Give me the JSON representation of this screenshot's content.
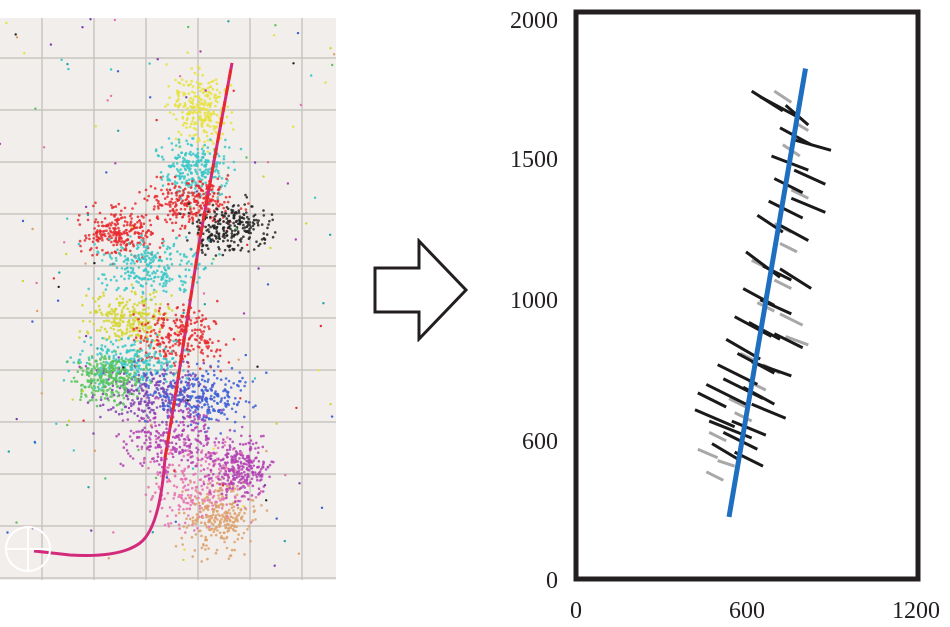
{
  "map_panel": {
    "background": "#f1eeeb",
    "grid_color": "#c9c5c1",
    "well_color": "#d42a7c",
    "marker_color": "#e8292e",
    "marker_alt_color": "#62b445",
    "cluster_colors": [
      "#e6e23c",
      "#36c7c7",
      "#e8292e",
      "#3b5fd6",
      "#7b3fb0",
      "#b23fb3",
      "#dda06b",
      "#20a5a5",
      "#222222",
      "#59c45a",
      "#d3d62f",
      "#e66fb0"
    ]
  },
  "arrow": {
    "stroke": "#231f20",
    "fill": "#ffffff"
  },
  "chart_data": {
    "type": "scatter",
    "title": "",
    "xlabel": "",
    "ylabel": "",
    "xlim": [
      0,
      1200
    ],
    "ylim": [
      0,
      2000
    ],
    "x_ticks": [
      "0",
      "600",
      "1200"
    ],
    "y_ticks": [
      "0",
      "600",
      "1000",
      "1500",
      "2000"
    ],
    "y_tick_values": [
      0,
      600,
      1000,
      1500,
      2000
    ],
    "x_tick_values": [
      0,
      600,
      1200
    ],
    "grid": false,
    "line_color": "#1f6fc0",
    "trend_line": [
      [
        540,
        220
      ],
      [
        810,
        1810
      ]
    ],
    "black_segments": [
      [
        [
          620,
          1730
        ],
        [
          730,
          1660
        ]
      ],
      [
        [
          650,
          1710
        ],
        [
          780,
          1640
        ]
      ],
      [
        [
          740,
          1680
        ],
        [
          820,
          1610
        ]
      ],
      [
        [
          760,
          1560
        ],
        [
          900,
          1520
        ]
      ],
      [
        [
          720,
          1600
        ],
        [
          830,
          1540
        ]
      ],
      [
        [
          690,
          1500
        ],
        [
          820,
          1450
        ]
      ],
      [
        [
          700,
          1420
        ],
        [
          800,
          1370
        ]
      ],
      [
        [
          770,
          1450
        ],
        [
          880,
          1400
        ]
      ],
      [
        [
          680,
          1340
        ],
        [
          800,
          1280
        ]
      ],
      [
        [
          760,
          1350
        ],
        [
          880,
          1300
        ]
      ],
      [
        [
          640,
          1290
        ],
        [
          730,
          1230
        ]
      ],
      [
        [
          710,
          1260
        ],
        [
          820,
          1200
        ]
      ],
      [
        [
          600,
          1160
        ],
        [
          720,
          1070
        ]
      ],
      [
        [
          660,
          1110
        ],
        [
          760,
          1060
        ]
      ],
      [
        [
          720,
          1100
        ],
        [
          830,
          1030
        ]
      ],
      [
        [
          590,
          1030
        ],
        [
          700,
          970
        ]
      ],
      [
        [
          650,
          990
        ],
        [
          760,
          940
        ]
      ],
      [
        [
          560,
          930
        ],
        [
          690,
          860
        ]
      ],
      [
        [
          610,
          910
        ],
        [
          720,
          850
        ]
      ],
      [
        [
          530,
          850
        ],
        [
          650,
          780
        ]
      ],
      [
        [
          570,
          800
        ],
        [
          700,
          730
        ]
      ],
      [
        [
          620,
          770
        ],
        [
          760,
          720
        ]
      ],
      [
        [
          500,
          760
        ],
        [
          640,
          690
        ]
      ],
      [
        [
          520,
          710
        ],
        [
          660,
          640
        ]
      ],
      [
        [
          460,
          690
        ],
        [
          600,
          620
        ]
      ],
      [
        [
          420,
          600
        ],
        [
          560,
          540
        ]
      ],
      [
        [
          470,
          560
        ],
        [
          620,
          500
        ]
      ],
      [
        [
          550,
          560
        ],
        [
          670,
          510
        ]
      ],
      [
        [
          430,
          660
        ],
        [
          530,
          610
        ]
      ],
      [
        [
          590,
          680
        ],
        [
          700,
          620
        ]
      ],
      [
        [
          620,
          620
        ],
        [
          740,
          570
        ]
      ],
      [
        [
          480,
          480
        ],
        [
          580,
          420
        ]
      ],
      [
        [
          560,
          450
        ],
        [
          660,
          400
        ]
      ],
      [
        [
          520,
          520
        ],
        [
          640,
          460
        ]
      ],
      [
        [
          700,
          870
        ],
        [
          800,
          820
        ]
      ]
    ],
    "gray_segments": [
      [
        [
          700,
          1730
        ],
        [
          760,
          1690
        ]
      ],
      [
        [
          770,
          1620
        ],
        [
          820,
          1590
        ]
      ],
      [
        [
          730,
          1540
        ],
        [
          790,
          1500
        ]
      ],
      [
        [
          760,
          1380
        ],
        [
          820,
          1350
        ]
      ],
      [
        [
          720,
          1190
        ],
        [
          780,
          1160
        ]
      ],
      [
        [
          620,
          1130
        ],
        [
          680,
          1100
        ]
      ],
      [
        [
          700,
          1060
        ],
        [
          760,
          1030
        ]
      ],
      [
        [
          640,
          980
        ],
        [
          700,
          950
        ]
      ],
      [
        [
          720,
          940
        ],
        [
          800,
          900
        ]
      ],
      [
        [
          740,
          860
        ],
        [
          820,
          830
        ]
      ],
      [
        [
          580,
          800
        ],
        [
          640,
          770
        ]
      ],
      [
        [
          660,
          760
        ],
        [
          720,
          730
        ]
      ],
      [
        [
          610,
          700
        ],
        [
          670,
          670
        ]
      ],
      [
        [
          540,
          640
        ],
        [
          600,
          610
        ]
      ],
      [
        [
          560,
          590
        ],
        [
          620,
          560
        ]
      ],
      [
        [
          470,
          520
        ],
        [
          530,
          490
        ]
      ],
      [
        [
          430,
          460
        ],
        [
          500,
          430
        ]
      ],
      [
        [
          460,
          380
        ],
        [
          520,
          350
        ]
      ],
      [
        [
          500,
          420
        ],
        [
          560,
          400
        ]
      ],
      [
        [
          700,
          1260
        ],
        [
          760,
          1230
        ]
      ]
    ]
  }
}
